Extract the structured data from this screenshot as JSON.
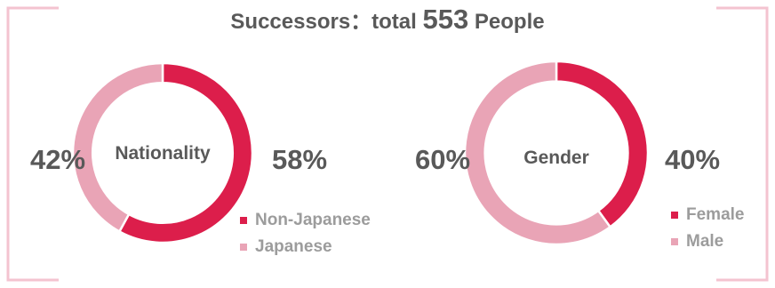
{
  "title": {
    "prefix": "Successors：total ",
    "number": "553",
    "suffix": " People"
  },
  "colors": {
    "primary": "#dc1e4b",
    "secondary": "#e9a4b6",
    "bracket": "#f4c3d0",
    "text": "#595959",
    "legend_text": "#9c9c9c"
  },
  "chart_data": [
    {
      "type": "pie",
      "center_label": "Nationality",
      "slices": [
        {
          "name": "Non-Japanese",
          "value": 58,
          "label": "58%",
          "color": "#dc1e4b"
        },
        {
          "name": "Japanese",
          "value": 42,
          "label": "42%",
          "color": "#e9a4b6"
        }
      ],
      "legend": [
        "Non-Japanese",
        "Japanese"
      ],
      "legend_position": "bottom-right"
    },
    {
      "type": "pie",
      "center_label": "Gender",
      "slices": [
        {
          "name": "Female",
          "value": 40,
          "label": "40%",
          "color": "#dc1e4b"
        },
        {
          "name": "Male",
          "value": 60,
          "label": "60%",
          "color": "#e9a4b6"
        }
      ],
      "legend": [
        "Female",
        "Male"
      ],
      "legend_position": "bottom-right"
    }
  ]
}
